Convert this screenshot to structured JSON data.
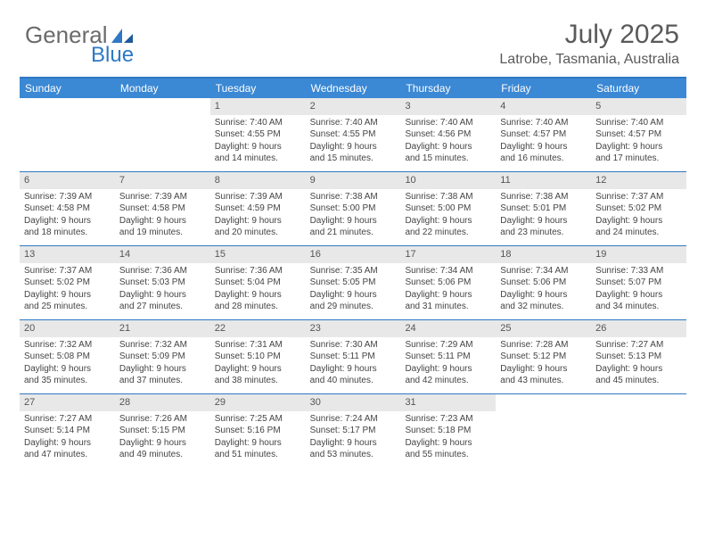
{
  "logo": {
    "text1": "General",
    "text2": "Blue"
  },
  "header": {
    "title": "July 2025",
    "location": "Latrobe, Tasmania, Australia"
  },
  "colors": {
    "header_bar": "#3b88d4",
    "border": "#2f78c4",
    "daynum_bg": "#e8e8e8",
    "text": "#444444"
  },
  "day_names": [
    "Sunday",
    "Monday",
    "Tuesday",
    "Wednesday",
    "Thursday",
    "Friday",
    "Saturday"
  ],
  "weeks": [
    [
      null,
      null,
      {
        "n": "1",
        "sunrise": "7:40 AM",
        "sunset": "4:55 PM",
        "dl1": "Daylight: 9 hours",
        "dl2": "and 14 minutes."
      },
      {
        "n": "2",
        "sunrise": "7:40 AM",
        "sunset": "4:55 PM",
        "dl1": "Daylight: 9 hours",
        "dl2": "and 15 minutes."
      },
      {
        "n": "3",
        "sunrise": "7:40 AM",
        "sunset": "4:56 PM",
        "dl1": "Daylight: 9 hours",
        "dl2": "and 15 minutes."
      },
      {
        "n": "4",
        "sunrise": "7:40 AM",
        "sunset": "4:57 PM",
        "dl1": "Daylight: 9 hours",
        "dl2": "and 16 minutes."
      },
      {
        "n": "5",
        "sunrise": "7:40 AM",
        "sunset": "4:57 PM",
        "dl1": "Daylight: 9 hours",
        "dl2": "and 17 minutes."
      }
    ],
    [
      {
        "n": "6",
        "sunrise": "7:39 AM",
        "sunset": "4:58 PM",
        "dl1": "Daylight: 9 hours",
        "dl2": "and 18 minutes."
      },
      {
        "n": "7",
        "sunrise": "7:39 AM",
        "sunset": "4:58 PM",
        "dl1": "Daylight: 9 hours",
        "dl2": "and 19 minutes."
      },
      {
        "n": "8",
        "sunrise": "7:39 AM",
        "sunset": "4:59 PM",
        "dl1": "Daylight: 9 hours",
        "dl2": "and 20 minutes."
      },
      {
        "n": "9",
        "sunrise": "7:38 AM",
        "sunset": "5:00 PM",
        "dl1": "Daylight: 9 hours",
        "dl2": "and 21 minutes."
      },
      {
        "n": "10",
        "sunrise": "7:38 AM",
        "sunset": "5:00 PM",
        "dl1": "Daylight: 9 hours",
        "dl2": "and 22 minutes."
      },
      {
        "n": "11",
        "sunrise": "7:38 AM",
        "sunset": "5:01 PM",
        "dl1": "Daylight: 9 hours",
        "dl2": "and 23 minutes."
      },
      {
        "n": "12",
        "sunrise": "7:37 AM",
        "sunset": "5:02 PM",
        "dl1": "Daylight: 9 hours",
        "dl2": "and 24 minutes."
      }
    ],
    [
      {
        "n": "13",
        "sunrise": "7:37 AM",
        "sunset": "5:02 PM",
        "dl1": "Daylight: 9 hours",
        "dl2": "and 25 minutes."
      },
      {
        "n": "14",
        "sunrise": "7:36 AM",
        "sunset": "5:03 PM",
        "dl1": "Daylight: 9 hours",
        "dl2": "and 27 minutes."
      },
      {
        "n": "15",
        "sunrise": "7:36 AM",
        "sunset": "5:04 PM",
        "dl1": "Daylight: 9 hours",
        "dl2": "and 28 minutes."
      },
      {
        "n": "16",
        "sunrise": "7:35 AM",
        "sunset": "5:05 PM",
        "dl1": "Daylight: 9 hours",
        "dl2": "and 29 minutes."
      },
      {
        "n": "17",
        "sunrise": "7:34 AM",
        "sunset": "5:06 PM",
        "dl1": "Daylight: 9 hours",
        "dl2": "and 31 minutes."
      },
      {
        "n": "18",
        "sunrise": "7:34 AM",
        "sunset": "5:06 PM",
        "dl1": "Daylight: 9 hours",
        "dl2": "and 32 minutes."
      },
      {
        "n": "19",
        "sunrise": "7:33 AM",
        "sunset": "5:07 PM",
        "dl1": "Daylight: 9 hours",
        "dl2": "and 34 minutes."
      }
    ],
    [
      {
        "n": "20",
        "sunrise": "7:32 AM",
        "sunset": "5:08 PM",
        "dl1": "Daylight: 9 hours",
        "dl2": "and 35 minutes."
      },
      {
        "n": "21",
        "sunrise": "7:32 AM",
        "sunset": "5:09 PM",
        "dl1": "Daylight: 9 hours",
        "dl2": "and 37 minutes."
      },
      {
        "n": "22",
        "sunrise": "7:31 AM",
        "sunset": "5:10 PM",
        "dl1": "Daylight: 9 hours",
        "dl2": "and 38 minutes."
      },
      {
        "n": "23",
        "sunrise": "7:30 AM",
        "sunset": "5:11 PM",
        "dl1": "Daylight: 9 hours",
        "dl2": "and 40 minutes."
      },
      {
        "n": "24",
        "sunrise": "7:29 AM",
        "sunset": "5:11 PM",
        "dl1": "Daylight: 9 hours",
        "dl2": "and 42 minutes."
      },
      {
        "n": "25",
        "sunrise": "7:28 AM",
        "sunset": "5:12 PM",
        "dl1": "Daylight: 9 hours",
        "dl2": "and 43 minutes."
      },
      {
        "n": "26",
        "sunrise": "7:27 AM",
        "sunset": "5:13 PM",
        "dl1": "Daylight: 9 hours",
        "dl2": "and 45 minutes."
      }
    ],
    [
      {
        "n": "27",
        "sunrise": "7:27 AM",
        "sunset": "5:14 PM",
        "dl1": "Daylight: 9 hours",
        "dl2": "and 47 minutes."
      },
      {
        "n": "28",
        "sunrise": "7:26 AM",
        "sunset": "5:15 PM",
        "dl1": "Daylight: 9 hours",
        "dl2": "and 49 minutes."
      },
      {
        "n": "29",
        "sunrise": "7:25 AM",
        "sunset": "5:16 PM",
        "dl1": "Daylight: 9 hours",
        "dl2": "and 51 minutes."
      },
      {
        "n": "30",
        "sunrise": "7:24 AM",
        "sunset": "5:17 PM",
        "dl1": "Daylight: 9 hours",
        "dl2": "and 53 minutes."
      },
      {
        "n": "31",
        "sunrise": "7:23 AM",
        "sunset": "5:18 PM",
        "dl1": "Daylight: 9 hours",
        "dl2": "and 55 minutes."
      },
      null,
      null
    ]
  ]
}
